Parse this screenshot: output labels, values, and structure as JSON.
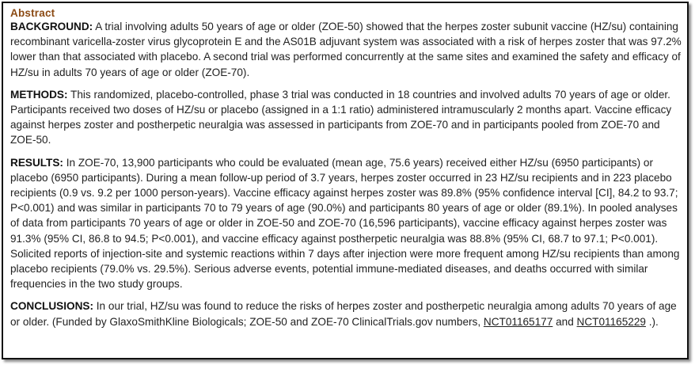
{
  "abstract": {
    "heading": "Abstract",
    "heading_color": "#8b4a13",
    "sections": {
      "background": {
        "label": "BACKGROUND:",
        "text": "A trial involving adults 50 years of age or older (ZOE-50) showed that the herpes zoster subunit vaccine (HZ/su) containing recombinant varicella-zoster virus glycoprotein E and the AS01B adjuvant system was associated with a risk of herpes zoster that was 97.2% lower than that associated with placebo. A second trial was performed concurrently at the same sites and examined the safety and efficacy of HZ/su in adults 70 years of age or older (ZOE-70)."
      },
      "methods": {
        "label": "METHODS:",
        "text": "This randomized, placebo-controlled, phase 3 trial was conducted in 18 countries and involved adults 70 years of age or older. Participants received two doses of HZ/su or placebo (assigned in a 1:1 ratio) administered intramuscularly 2 months apart. Vaccine efficacy against herpes zoster and postherpetic neuralgia was assessed in participants from ZOE-70 and in participants pooled from ZOE-70 and ZOE-50."
      },
      "results": {
        "label": "RESULTS:",
        "text": "In ZOE-70, 13,900 participants who could be evaluated (mean age, 75.6 years) received either HZ/su (6950 participants) or placebo (6950 participants). During a mean follow-up period of 3.7 years, herpes zoster occurred in 23 HZ/su recipients and in 223 placebo recipients (0.9 vs. 9.2 per 1000 person-years). Vaccine efficacy against herpes zoster was 89.8% (95% confidence interval [CI], 84.2 to 93.7; P<0.001) and was similar in participants 70 to 79 years of age (90.0%) and participants 80 years of age or older (89.1%). In pooled analyses of data from participants 70 years of age or older in ZOE-50 and ZOE-70 (16,596 participants), vaccine efficacy against herpes zoster was 91.3% (95% CI, 86.8 to 94.5; P<0.001), and vaccine efficacy against postherpetic neuralgia was 88.8% (95% CI, 68.7 to 97.1; P<0.001). Solicited reports of injection-site and systemic reactions within 7 days after injection were more frequent among HZ/su recipients than among placebo recipients (79.0% vs. 29.5%). Serious adverse events, potential immune-mediated diseases, and deaths occurred with similar frequencies in the two study groups."
      },
      "conclusions": {
        "label": "CONCLUSIONS:",
        "text_before": "In our trial, HZ/su was found to reduce the risks of herpes zoster and postherpetic neuralgia among adults 70 years of age or older. (Funded by GlaxoSmithKline Biologicals; ZOE-50 and ZOE-70 ClinicalTrials.gov numbers, ",
        "link1": "NCT01165177",
        "text_between": " and ",
        "link2": "NCT01165229",
        "text_after": " .)."
      }
    }
  }
}
